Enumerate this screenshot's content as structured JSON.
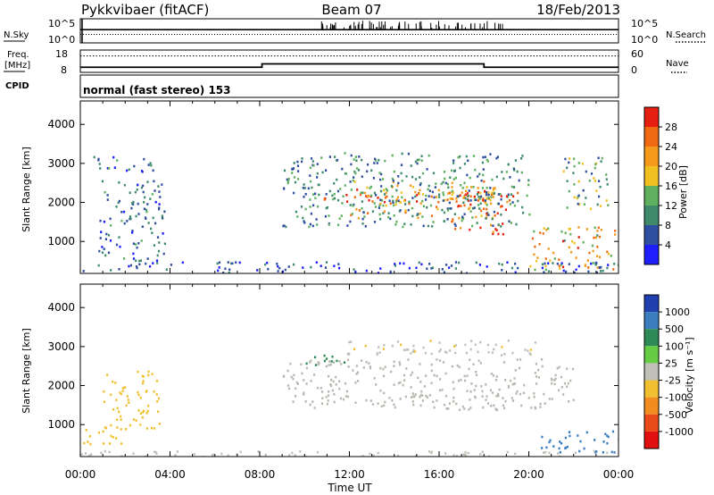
{
  "header": {
    "station": "Pykkvibaer (fitACF)",
    "beam": "Beam 07",
    "date": "18/Feb/2013"
  },
  "strips": {
    "nsky": {
      "label": "N.Sky",
      "tick_top": "10^5",
      "tick_bottom": "10^0",
      "right_label": "N.Search",
      "right_tick_top": "10^5",
      "right_tick_bottom": "10^0",
      "sky_level": 0.55,
      "search_level": 0.35,
      "spike_start_hour": 10.5,
      "spike_end_hour": 19.0
    },
    "freq": {
      "label_top": "Freq.",
      "label_bottom": "[MHz]",
      "tick_top": "18",
      "tick_bottom": "8",
      "right_label": "Nave",
      "right_tick_top": "60",
      "right_tick_bottom": "0",
      "segments": [
        {
          "x0": 0,
          "x1": 8.1,
          "freq": 10.3
        },
        {
          "x0": 8.1,
          "x1": 18.0,
          "freq": 11.8
        },
        {
          "x0": 18.0,
          "x1": 24,
          "freq": 10.3
        }
      ],
      "nave_level": 44
    },
    "cpid": {
      "label": "CPID",
      "mode_text": "normal (fast stereo) 153"
    }
  },
  "panels": {
    "power": {
      "ylabel": "Slant Range [km]",
      "ytick_labels": [
        "1000",
        "2000",
        "3000",
        "4000"
      ],
      "colorbar_title": "Power [dB]",
      "colorbar_labels": [
        "4",
        "8",
        "12",
        "16",
        "20",
        "24",
        "28"
      ]
    },
    "velocity": {
      "ylabel": "Slant Range [km]",
      "ytick_labels": [
        "1000",
        "2000",
        "3000",
        "4000"
      ],
      "colorbar_title": "Velocity  [m s⁻¹]",
      "colorbar_labels": [
        "1000",
        "500",
        "100",
        "25",
        "-25",
        "-100",
        "-500",
        "-1000"
      ]
    }
  },
  "xaxis": {
    "title": "Time UT",
    "tick_labels": [
      "00:00",
      "04:00",
      "08:00",
      "12:00",
      "16:00",
      "20:00",
      "00:00"
    ]
  },
  "colors": {
    "power_scale": [
      "#1e1eff",
      "#2f4ea0",
      "#3e8a6a",
      "#5fb05f",
      "#f0c020",
      "#f59a1a",
      "#f06a14",
      "#e52010"
    ],
    "velocity_scale": [
      "#2040b0",
      "#3a7ec0",
      "#2e8b57",
      "#66cc44",
      "#c0c0b8",
      "#f0c030",
      "#f08c20",
      "#e84a18",
      "#e01010"
    ],
    "ground_scatter": "#b8b8b0"
  },
  "chart_data": [
    {
      "type": "heatmap",
      "panel": "power",
      "title": "Pykkvibaer (fitACF)",
      "xlabel": "Time UT",
      "ylabel": "Slant Range [km]",
      "xlim": [
        0,
        24
      ],
      "ylim": [
        180,
        4600
      ],
      "yticks": [
        1000,
        2000,
        3000,
        4000
      ],
      "colorbar": {
        "label": "Power [dB]",
        "range": [
          0,
          32
        ],
        "ticks": [
          4,
          8,
          12,
          16,
          20,
          24,
          28
        ]
      },
      "regions": [
        {
          "t0": 10.8,
          "t1": 19.5,
          "r0": 2000,
          "r1": 2400,
          "value": 24,
          "note": "main echo band"
        },
        {
          "t0": 12.0,
          "t1": 18.5,
          "r0": 1600,
          "r1": 2600,
          "value": 18
        },
        {
          "t0": 16.5,
          "t1": 19.0,
          "r0": 1200,
          "r1": 2300,
          "value": 28
        },
        {
          "t0": 9.0,
          "t1": 20.0,
          "r0": 1400,
          "r1": 3300,
          "value": 10
        },
        {
          "t0": 0.8,
          "t1": 3.8,
          "r0": 500,
          "r1": 2600,
          "value": 8
        },
        {
          "t0": 0.5,
          "t1": 3.5,
          "r0": 2800,
          "r1": 3200,
          "value": 8
        },
        {
          "t0": 20.0,
          "t1": 24.0,
          "r0": 300,
          "r1": 1400,
          "value": 20
        },
        {
          "t0": 21.5,
          "t1": 23.5,
          "r0": 1800,
          "r1": 3200,
          "value": 12
        },
        {
          "t0": 0.0,
          "t1": 24.0,
          "r0": 200,
          "r1": 500,
          "value": 6
        }
      ]
    },
    {
      "type": "heatmap",
      "panel": "velocity",
      "xlabel": "Time UT",
      "ylabel": "Slant Range [km]",
      "xlim": [
        0,
        24
      ],
      "ylim": [
        180,
        4600
      ],
      "yticks": [
        1000,
        2000,
        3000,
        4000
      ],
      "colorbar": {
        "label": "Velocity [m s-1]",
        "ticks": [
          1000,
          500,
          100,
          25,
          -25,
          -100,
          -500,
          -1000
        ]
      },
      "regions": [
        {
          "t0": 9.0,
          "t1": 22.0,
          "r0": 1400,
          "r1": 2700,
          "value": 0,
          "note": "ground scatter (grey)"
        },
        {
          "t0": 10.0,
          "t1": 12.0,
          "r0": 2500,
          "r1": 2800,
          "value": 80
        },
        {
          "t0": 11.5,
          "t1": 20.5,
          "r0": 2800,
          "r1": 3200,
          "value": -80
        },
        {
          "t0": 0.0,
          "t1": 2.0,
          "r0": 500,
          "r1": 900,
          "value": -400
        },
        {
          "t0": 1.0,
          "t1": 3.5,
          "r0": 900,
          "r1": 2400,
          "value": -300
        },
        {
          "t0": 20.5,
          "t1": 24.0,
          "r0": 300,
          "r1": 900,
          "value": 200
        },
        {
          "t0": 0.0,
          "t1": 24.0,
          "r0": 180,
          "r1": 350,
          "value": -40
        }
      ]
    }
  ]
}
